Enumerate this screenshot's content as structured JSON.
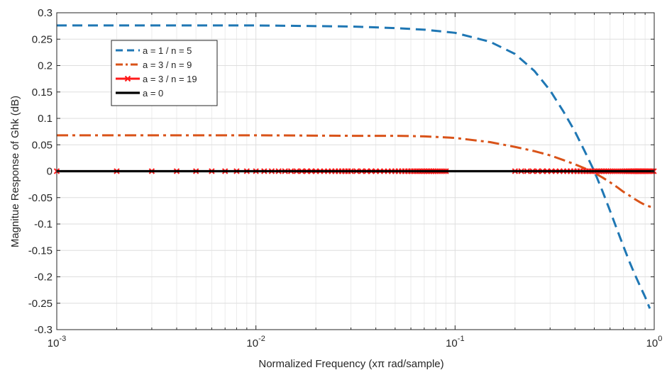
{
  "chart_data": {
    "type": "line",
    "title": "",
    "xlabel": "Normalized Frequency (xπ rad/sample)",
    "ylabel": "Magnitue Response of Ghk (dB)",
    "xscale": "log",
    "xlim": [
      0.001,
      1
    ],
    "ylim": [
      -0.3,
      0.3
    ],
    "grid": true,
    "legend_position": "top-left",
    "x_ticks": [
      {
        "value": 0.001,
        "base": "10",
        "exp": "-3"
      },
      {
        "value": 0.01,
        "base": "10",
        "exp": "-2"
      },
      {
        "value": 0.1,
        "base": "10",
        "exp": "-1"
      },
      {
        "value": 1,
        "base": "10",
        "exp": "0"
      }
    ],
    "y_ticks": [
      {
        "value": 0.3,
        "label": "0.3"
      },
      {
        "value": 0.25,
        "label": "0.25"
      },
      {
        "value": 0.2,
        "label": "0.2"
      },
      {
        "value": 0.15,
        "label": "0.15"
      },
      {
        "value": 0.1,
        "label": "0.1"
      },
      {
        "value": 0.05,
        "label": "0.05"
      },
      {
        "value": 0,
        "label": "0"
      },
      {
        "value": -0.05,
        "label": "-0.05"
      },
      {
        "value": -0.1,
        "label": "-0.1"
      },
      {
        "value": -0.15,
        "label": "-0.15"
      },
      {
        "value": -0.2,
        "label": "-0.2"
      },
      {
        "value": -0.25,
        "label": "-0.25"
      },
      {
        "value": -0.3,
        "label": "-0.3"
      }
    ],
    "series": [
      {
        "name": "a = 1 / n = 5",
        "color": "#1f77b4",
        "style": "dashed",
        "marker": "none",
        "x": [
          0.001,
          0.01,
          0.03,
          0.05,
          0.07,
          0.1,
          0.15,
          0.2,
          0.25,
          0.3,
          0.35,
          0.4,
          0.45,
          0.5,
          0.55,
          0.6,
          0.65,
          0.7,
          0.75,
          0.8,
          0.85,
          0.9,
          0.95
        ],
        "y": [
          0.276,
          0.276,
          0.274,
          0.271,
          0.268,
          0.262,
          0.245,
          0.222,
          0.19,
          0.153,
          0.113,
          0.075,
          0.036,
          0.0,
          -0.038,
          -0.075,
          -0.11,
          -0.142,
          -0.171,
          -0.196,
          -0.218,
          -0.238,
          -0.26
        ]
      },
      {
        "name": "a = 3 / n = 9",
        "color": "#d95319",
        "style": "dashdot",
        "marker": "none",
        "x": [
          0.001,
          0.01,
          0.03,
          0.05,
          0.07,
          0.1,
          0.15,
          0.2,
          0.25,
          0.3,
          0.35,
          0.4,
          0.45,
          0.5,
          0.55,
          0.6,
          0.65,
          0.7,
          0.75,
          0.8,
          0.85,
          0.9,
          0.95,
          1.0
        ],
        "y": [
          0.068,
          0.068,
          0.067,
          0.067,
          0.066,
          0.063,
          0.055,
          0.046,
          0.038,
          0.03,
          0.021,
          0.013,
          0.005,
          -0.003,
          -0.012,
          -0.021,
          -0.03,
          -0.039,
          -0.046,
          -0.053,
          -0.059,
          -0.064,
          -0.067,
          -0.068
        ]
      },
      {
        "name": "a = 3 / n = 19",
        "color": "#ff1a1a",
        "style": "solid",
        "marker": "x",
        "x": [
          0.001,
          1.0
        ],
        "y": [
          0.0,
          0.0
        ],
        "marker_x": [
          0.001,
          0.002,
          0.003,
          0.004,
          0.005,
          0.006,
          0.007,
          0.008,
          0.009,
          0.01,
          0.011,
          0.012,
          0.013,
          0.014,
          0.015,
          0.016,
          0.017,
          0.018,
          0.019,
          0.02,
          0.021,
          0.022,
          0.023,
          0.024,
          0.025,
          0.026,
          0.027,
          0.028,
          0.029,
          0.03,
          0.032,
          0.034,
          0.036,
          0.038,
          0.04,
          0.042,
          0.044,
          0.046,
          0.048,
          0.05,
          0.052,
          0.054,
          0.056,
          0.058,
          0.06,
          0.062,
          0.064,
          0.066,
          0.068,
          0.07,
          0.072,
          0.074,
          0.076,
          0.078,
          0.08,
          0.082,
          0.084,
          0.086,
          0.088,
          0.09,
          0.2,
          0.215,
          0.23,
          0.245,
          0.26,
          0.275,
          0.29,
          0.305,
          0.32,
          0.335,
          0.35,
          0.365,
          0.38,
          0.395,
          0.41,
          0.425,
          0.44,
          0.455,
          0.47,
          0.485,
          0.5,
          0.515,
          0.53,
          0.545,
          0.56,
          0.575,
          0.59,
          0.605,
          0.62,
          0.635,
          0.65,
          0.665,
          0.68,
          0.695,
          0.71,
          0.725,
          0.74,
          0.755,
          0.77,
          0.785,
          0.8,
          0.815,
          0.83,
          0.845,
          0.86,
          0.875,
          0.89,
          0.905,
          0.92,
          0.935,
          0.95,
          0.965,
          0.98,
          0.995
        ]
      },
      {
        "name": "a = 0",
        "color": "#000000",
        "style": "solid",
        "marker": "none",
        "x": [
          0.001,
          1.0
        ],
        "y": [
          0.0,
          0.0
        ]
      }
    ]
  }
}
